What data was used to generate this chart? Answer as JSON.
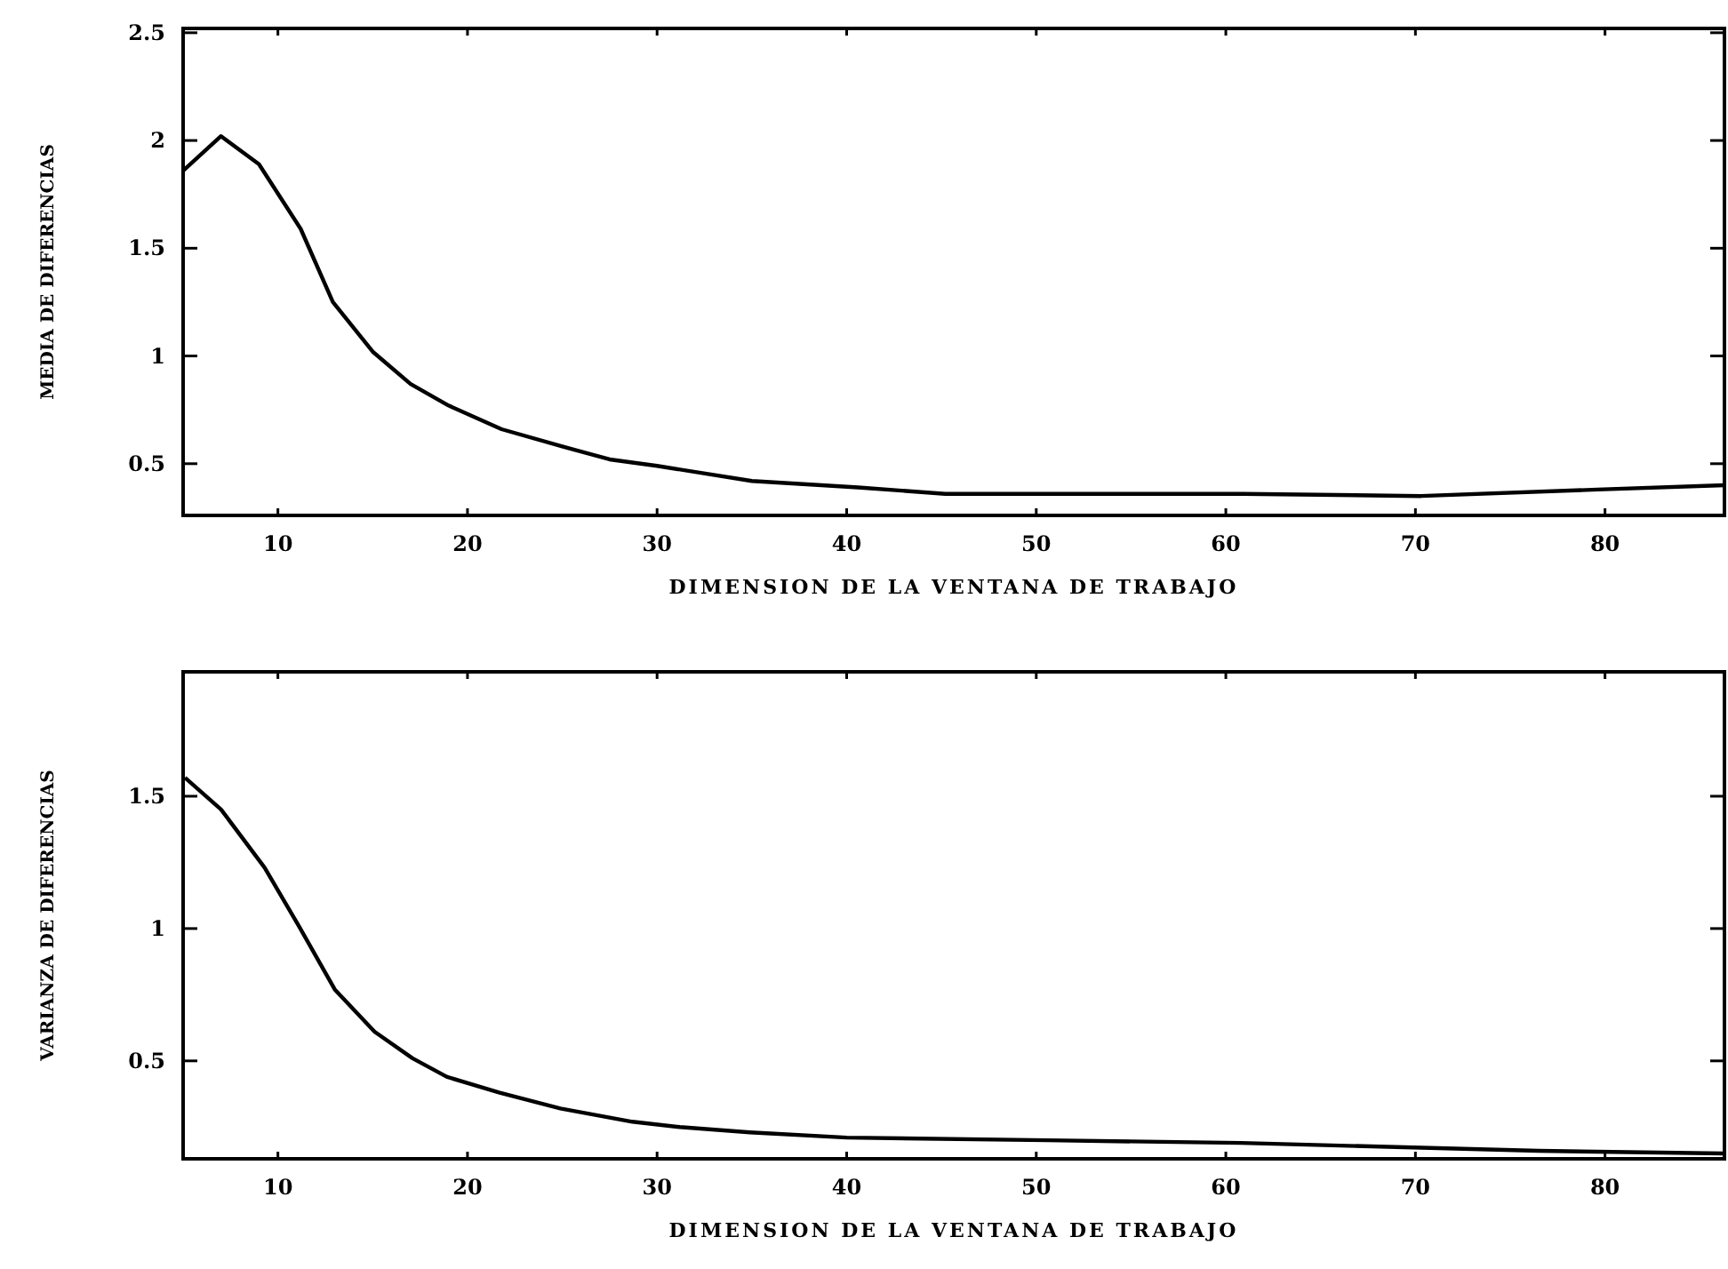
{
  "chart_data": [
    {
      "type": "line",
      "xlabel": "DIMENSION DE LA VENTANA DE TRABAJO",
      "ylabel": "MEDIA DE DIFERENCIAS",
      "xlim": [
        5,
        86.3
      ],
      "ylim": [
        0.26,
        2.52
      ],
      "xticks": [
        10,
        20,
        30,
        40,
        50,
        60,
        70,
        80
      ],
      "yticks": [
        0.5,
        1,
        1.5,
        2,
        2.5
      ],
      "series": [
        {
          "color": "#000000",
          "x": [
            5,
            7,
            9,
            11.2,
            12.9,
            15,
            17,
            19,
            21.8,
            25,
            27.5,
            30,
            35,
            40.6,
            45.2,
            50.6,
            60.9,
            70.3,
            79.6,
            86.3
          ],
          "values": [
            1.86,
            2.02,
            1.89,
            1.59,
            1.25,
            1.02,
            0.87,
            0.77,
            0.66,
            0.58,
            0.52,
            0.49,
            0.42,
            0.39,
            0.36,
            0.36,
            0.36,
            0.35,
            0.38,
            0.4
          ]
        }
      ]
    },
    {
      "type": "line",
      "xlabel": "DIMENSION DE LA VENTANA DE TRABAJO",
      "ylabel": "VARIANZA DE DIFERENCIAS",
      "xlim": [
        5,
        86.3
      ],
      "ylim": [
        0.13,
        1.97
      ],
      "xticks": [
        10,
        20,
        30,
        40,
        50,
        60,
        70,
        80
      ],
      "yticks": [
        0.5,
        1,
        1.5
      ],
      "series": [
        {
          "color": "#000000",
          "x": [
            5.1,
            7,
            9.3,
            11.1,
            13,
            15.1,
            17.1,
            18.9,
            21.7,
            24.9,
            28.7,
            31.2,
            34.9,
            40,
            50.6,
            60.8,
            76.5,
            86.3
          ],
          "values": [
            1.57,
            1.45,
            1.23,
            1.01,
            0.77,
            0.61,
            0.51,
            0.44,
            0.38,
            0.32,
            0.27,
            0.25,
            0.23,
            0.21,
            0.2,
            0.19,
            0.16,
            0.15
          ]
        }
      ]
    }
  ]
}
